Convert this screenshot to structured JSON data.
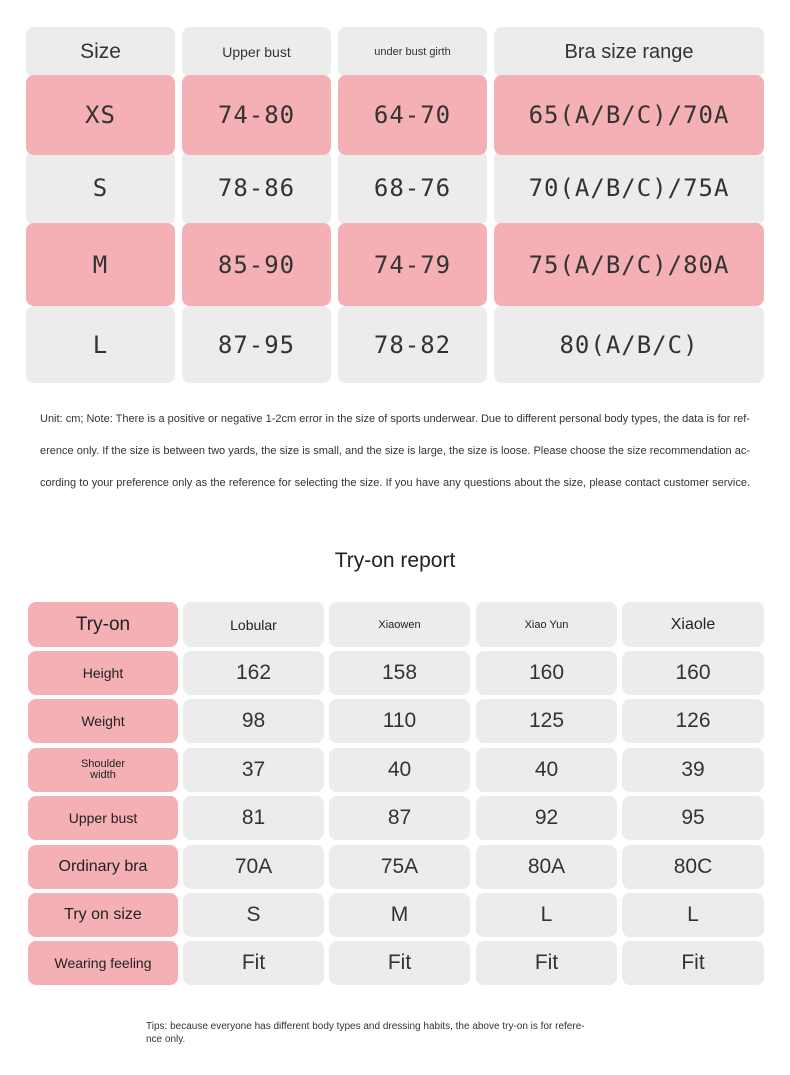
{
  "size_table": {
    "headers": [
      "Size",
      "Upper bust",
      "under bust girth",
      "Bra size range"
    ],
    "rows": [
      [
        "XS",
        "74-80",
        "64-70",
        "65(A/B/C)/70A"
      ],
      [
        "S",
        "78-86",
        "68-76",
        "70(A/B/C)/75A"
      ],
      [
        "M",
        "85-90",
        "74-79",
        "75(A/B/C)/80A"
      ],
      [
        "L",
        "87-95",
        "78-82",
        "80(A/B/C)"
      ]
    ]
  },
  "note": {
    "lines": [
      "Unit: cm; Note: There is a positive or negative 1-2cm error in the size of sports underwear. Due to different personal body types, the data is for ref-",
      "erence only. If the size is between two yards, the size is small, and the size is large, the size is loose. Please choose the size recommendation ac-",
      "cording to your preference only as the reference for selecting the size. If you have any questions about the size, please contact customer service."
    ]
  },
  "tryon": {
    "title": "Try-on report",
    "headers": [
      "Try-on",
      "Lobular",
      "Xiaowen",
      "Xiao Yun",
      "Xiaole"
    ],
    "rows": [
      [
        "Height",
        "162",
        "158",
        "160",
        "160"
      ],
      [
        "Weight",
        "98",
        "110",
        "125",
        "126"
      ],
      [
        "Shoulder width",
        "37",
        "40",
        "40",
        "39"
      ],
      [
        "Upper bust",
        "81",
        "87",
        "92",
        "95"
      ],
      [
        "Ordinary bra",
        "70A",
        "75A",
        "80A",
        "80C"
      ],
      [
        "Try on size",
        "S",
        "M",
        "L",
        "L"
      ],
      [
        "Wearing feeling",
        "Fit",
        "Fit",
        "Fit",
        "Fit"
      ]
    ]
  },
  "tips": {
    "lines": [
      "Tips: because everyone has different body types and dressing habits, the above try-on is for refere-",
      "nce only."
    ]
  }
}
